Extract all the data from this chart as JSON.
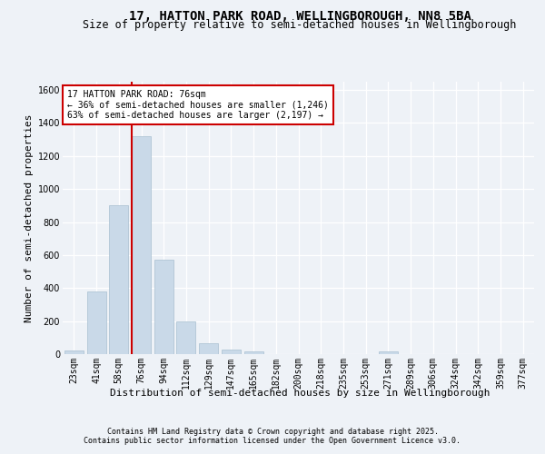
{
  "title": "17, HATTON PARK ROAD, WELLINGBOROUGH, NN8 5BA",
  "subtitle": "Size of property relative to semi-detached houses in Wellingborough",
  "xlabel": "Distribution of semi-detached houses by size in Wellingborough",
  "ylabel": "Number of semi-detached properties",
  "categories": [
    "23sqm",
    "41sqm",
    "58sqm",
    "76sqm",
    "94sqm",
    "112sqm",
    "129sqm",
    "147sqm",
    "165sqm",
    "182sqm",
    "200sqm",
    "218sqm",
    "235sqm",
    "253sqm",
    "271sqm",
    "289sqm",
    "306sqm",
    "324sqm",
    "342sqm",
    "359sqm",
    "377sqm"
  ],
  "values": [
    20,
    380,
    900,
    1320,
    570,
    200,
    65,
    30,
    15,
    0,
    0,
    0,
    0,
    0,
    15,
    0,
    0,
    0,
    0,
    0,
    0
  ],
  "bar_color": "#c9d9e8",
  "bar_edge_color": "#a8bfd0",
  "red_line_index": 3,
  "annotation_title": "17 HATTON PARK ROAD: 76sqm",
  "annotation_line1": "← 36% of semi-detached houses are smaller (1,246)",
  "annotation_line2": "63% of semi-detached houses are larger (2,197) →",
  "annotation_box_color": "#ffffff",
  "annotation_box_edge_color": "#cc0000",
  "ylim": [
    0,
    1650
  ],
  "yticks": [
    0,
    200,
    400,
    600,
    800,
    1000,
    1200,
    1400,
    1600
  ],
  "footer_line1": "Contains HM Land Registry data © Crown copyright and database right 2025.",
  "footer_line2": "Contains public sector information licensed under the Open Government Licence v3.0.",
  "bg_color": "#eef2f7",
  "plot_bg_color": "#eef2f7",
  "grid_color": "#ffffff",
  "title_fontsize": 10,
  "subtitle_fontsize": 8.5,
  "axis_label_fontsize": 8,
  "tick_fontsize": 7,
  "footer_fontsize": 6,
  "annotation_fontsize": 7,
  "red_line_color": "#cc0000"
}
